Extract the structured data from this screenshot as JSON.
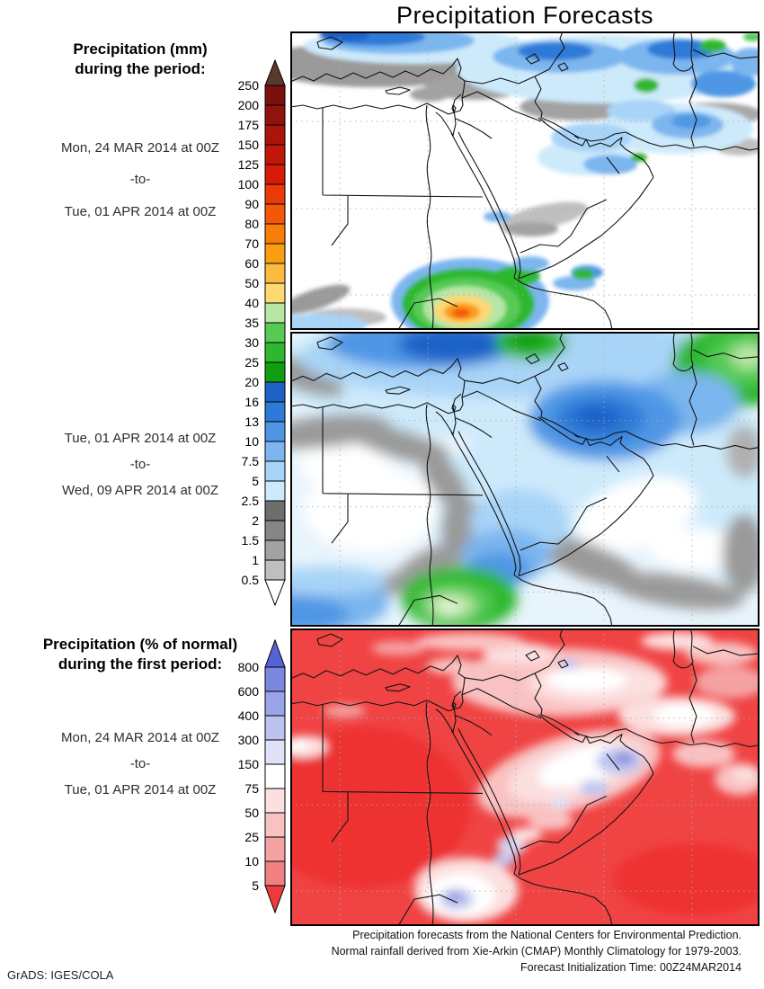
{
  "title": "Precipitation Forecasts",
  "panel1": {
    "heading1": "Precipitation (mm)",
    "heading2": "during the period:",
    "date_from": "Mon, 24 MAR 2014 at 00Z",
    "separator": "-to-",
    "date_to": "Tue, 01 APR 2014 at 00Z"
  },
  "panel2": {
    "date_from": "Tue, 01 APR 2014 at 00Z",
    "separator": "-to-",
    "date_to": "Wed, 09 APR 2014 at 00Z"
  },
  "panel3": {
    "heading1": "Precipitation (% of normal)",
    "heading2": "during the first period:",
    "date_from": "Mon, 24 MAR 2014 at 00Z",
    "separator": "-to-",
    "date_to": "Tue, 01 APR 2014 at 00Z"
  },
  "colorbar_mm": {
    "unit": "mm",
    "labels": [
      "250",
      "200",
      "175",
      "150",
      "125",
      "100",
      "90",
      "80",
      "70",
      "60",
      "50",
      "40",
      "35",
      "30",
      "25",
      "20",
      "16",
      "13",
      "10",
      "7.5",
      "5",
      "2.5",
      "2",
      "1.5",
      "1",
      "0.5"
    ],
    "arrow_top_color": "#5b3a2e",
    "segment_colors": [
      "#7c100d",
      "#92120e",
      "#aa140b",
      "#c2160a",
      "#d81a08",
      "#ea3a08",
      "#f45708",
      "#f97c06",
      "#fb9d12",
      "#fcbb40",
      "#fdd873",
      "#b7e6a5",
      "#55ca55",
      "#2db82d",
      "#0f9e10",
      "#1e62c8",
      "#2e7ad8",
      "#4f97e5",
      "#7cb6ef",
      "#a8d4f7",
      "#cdeafb",
      "#6e6e6e",
      "#868686",
      "#a2a2a2",
      "#bfbfbf"
    ],
    "arrow_bottom_color": "#ffffff"
  },
  "colorbar_pct": {
    "unit": "% of normal",
    "labels": [
      "800",
      "600",
      "400",
      "300",
      "150",
      "75",
      "50",
      "25",
      "10",
      "5"
    ],
    "arrow_top_color": "#5464d6",
    "segment_colors": [
      "#7b87e0",
      "#9aa4e9",
      "#bcc3f0",
      "#dfe2f8",
      "#ffffff",
      "#fcdfdf",
      "#f9c2c2",
      "#f5a2a2",
      "#f18080"
    ],
    "arrow_bottom_color": "#ee3c3c"
  },
  "footer": {
    "line1": "Precipitation forecasts from the National Centers for Environmental Prediction.",
    "line2": "Normal rainfall derived from Xie-Arkin (CMAP) Monthly Climatology for 1979-2003.",
    "line3": "Forecast Initialization Time: 00Z24MAR2014"
  },
  "credit": "GrADS: IGES/COLA"
}
